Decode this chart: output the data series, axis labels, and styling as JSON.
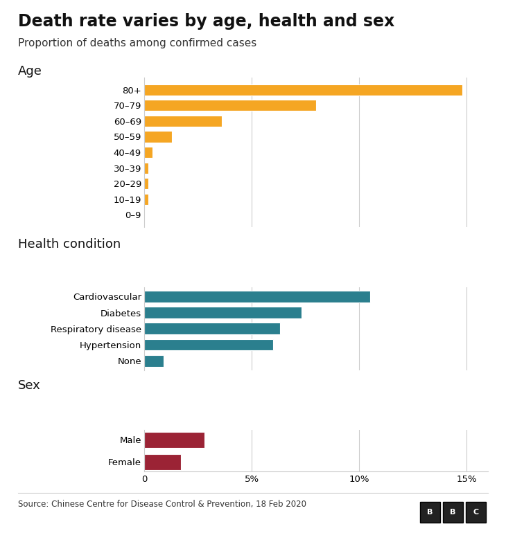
{
  "title": "Death rate varies by age, health and sex",
  "subtitle": "Proportion of deaths among confirmed cases",
  "source": "Source: Chinese Centre for Disease Control & Prevention, 18 Feb 2020",
  "age_labels": [
    "80+",
    "70–79",
    "60–69",
    "50–59",
    "40–49",
    "30–39",
    "20–29",
    "10–19",
    "0–9"
  ],
  "age_values": [
    14.8,
    8.0,
    3.6,
    1.3,
    0.4,
    0.2,
    0.2,
    0.2,
    0.0
  ],
  "age_color": "#F5A623",
  "health_labels": [
    "Cardiovascular",
    "Diabetes",
    "Respiratory disease",
    "Hypertension",
    "None"
  ],
  "health_values": [
    10.5,
    7.3,
    6.3,
    6.0,
    0.9
  ],
  "health_color": "#2B7F8E",
  "sex_labels": [
    "Male",
    "Female"
  ],
  "sex_values": [
    2.8,
    1.7
  ],
  "sex_color": "#9B2335",
  "xlim": [
    0,
    16
  ],
  "xticks": [
    0,
    5,
    10,
    15
  ],
  "xticklabels": [
    "0",
    "5%",
    "10%",
    "15%"
  ],
  "background_color": "#ffffff",
  "bar_edge_color": "white",
  "bar_linewidth": 0.8,
  "title_fontsize": 17,
  "subtitle_fontsize": 11,
  "section_label_fontsize": 13,
  "tick_fontsize": 9.5,
  "source_fontsize": 8.5,
  "bar_height": 0.72
}
